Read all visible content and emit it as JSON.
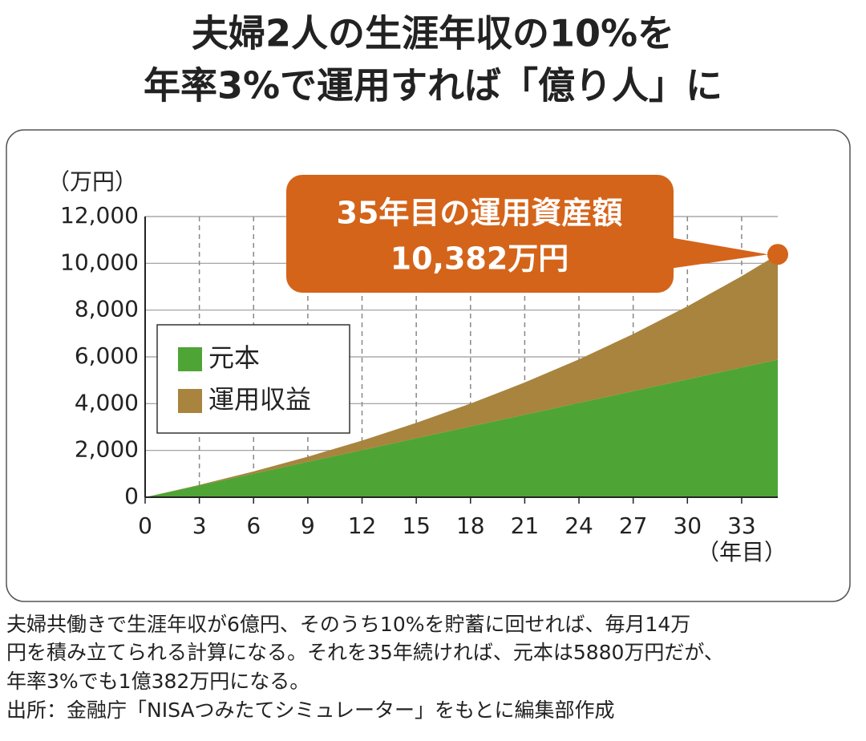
{
  "chart_data": {
    "type": "stacked_area",
    "title": [
      "夫婦2人の生涯年収の10%を",
      "年率3%で運用すれば「億り人」に"
    ],
    "y_unit_label": "（万円）",
    "x_unit_label": "（年目）",
    "x": [
      0,
      3,
      6,
      9,
      12,
      15,
      18,
      21,
      24,
      27,
      30,
      33,
      35
    ],
    "series": [
      {
        "name": "元本",
        "color": "#4ea535",
        "values": [
          0,
          504,
          1008,
          1512,
          2016,
          2520,
          3024,
          3528,
          4032,
          4536,
          5040,
          5544,
          5880
        ]
      },
      {
        "name": "運用収益",
        "color": "#a8843e",
        "values": [
          0,
          23,
          95,
          221,
          407,
          658,
          979,
          1378,
          1863,
          2440,
          3118,
          3908,
          4502
        ]
      }
    ],
    "xlim": [
      0,
      35
    ],
    "xticks": [
      0,
      3,
      6,
      9,
      12,
      15,
      18,
      21,
      24,
      27,
      30,
      33
    ],
    "ylim": [
      0,
      12000
    ],
    "yticks": [
      0,
      {
        "value": 2000,
        "label": "2,000"
      },
      {
        "value": 4000,
        "label": "4,000"
      },
      {
        "value": 6000,
        "label": "6,000"
      },
      {
        "value": 8000,
        "label": "8,000"
      },
      {
        "value": 10000,
        "label": "10,000"
      },
      {
        "value": 12000,
        "label": "12,000"
      }
    ],
    "grid": true,
    "legend_position": "left",
    "annotation": {
      "lines": [
        "35年目の運用資産額",
        "10,382万円"
      ],
      "color": "#d4641a"
    },
    "caption": [
      "夫婦共働きで生涯年収が6億円、そのうち10%を貯蓄に回せれば、毎月14万",
      "円を積み立てられる計算になる。それを35年続ければ、元本は5880万円だが、",
      "年率3%でも1億382万円になる。",
      "出所：金融庁「NISAつみたてシミュレーター」をもとに編集部作成"
    ]
  }
}
